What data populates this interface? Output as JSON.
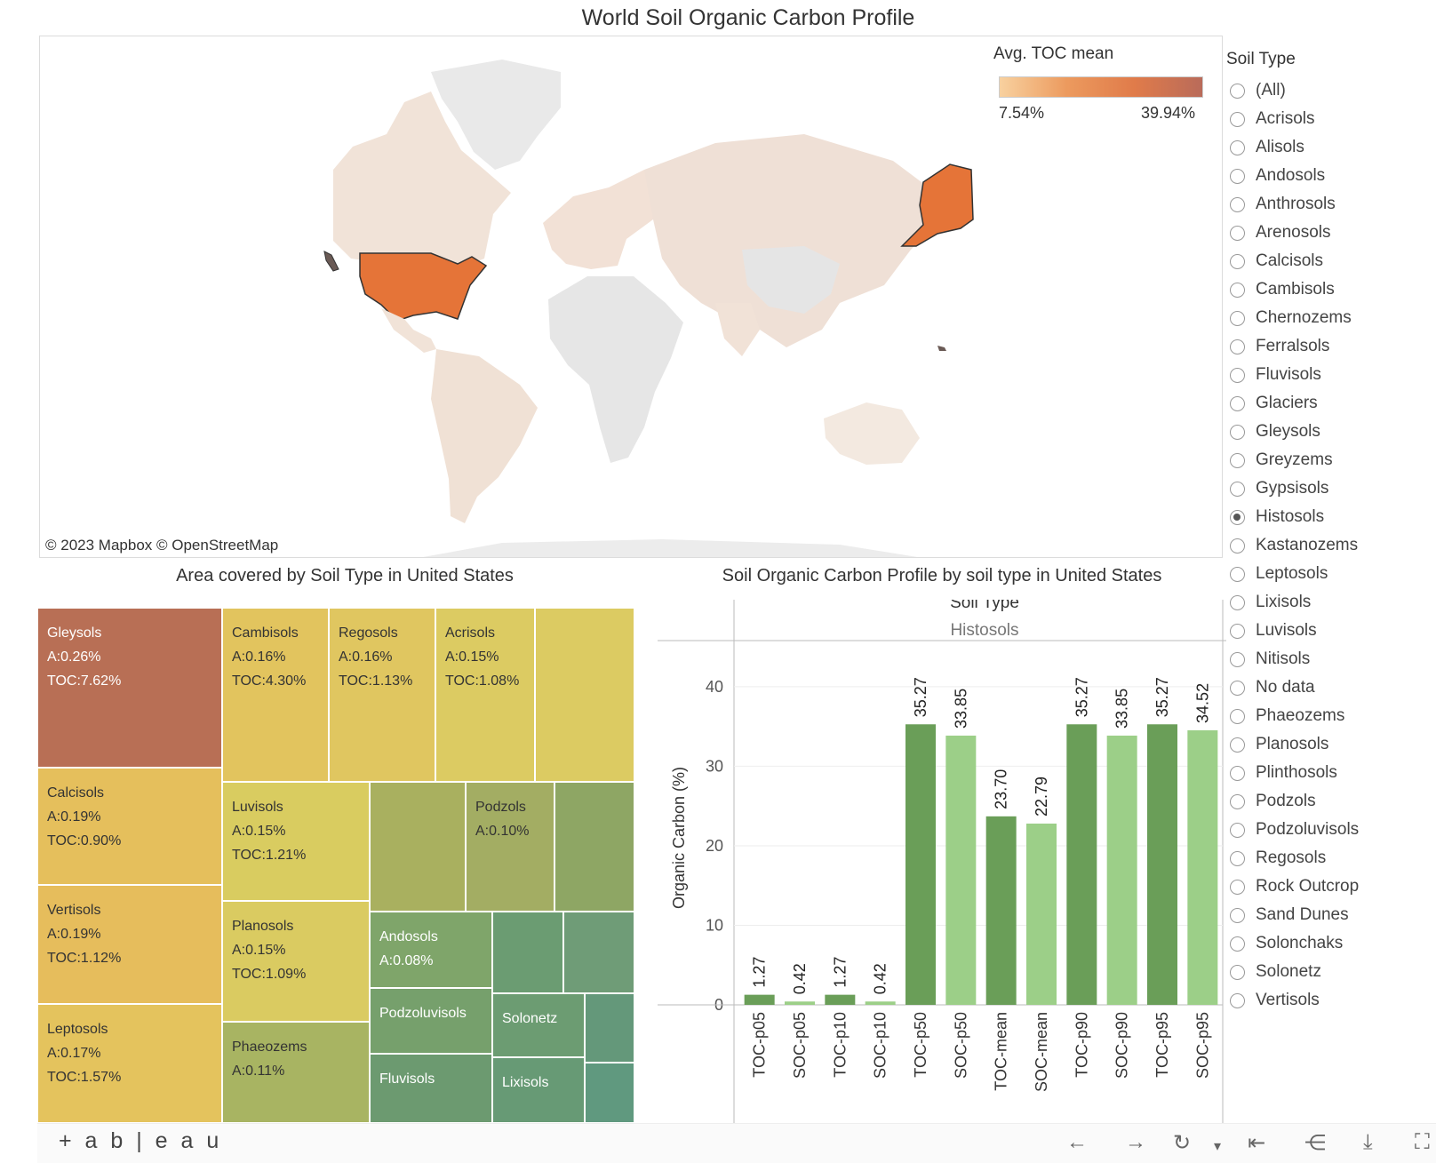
{
  "page_title": "World Soil Organic Carbon Profile",
  "map": {
    "legend_title": "Avg. TOC mean",
    "legend_min": "7.54%",
    "legend_max": "39.94%",
    "attribution": "© 2023 Mapbox  © OpenStreetMap",
    "highlight_color": "#e57438",
    "land_color": "#efe0d6",
    "nodata_color": "#e9e9e9"
  },
  "filter": {
    "title": "Soil Type",
    "selected": "Histosols",
    "options": [
      "(All)",
      "Acrisols",
      "Alisols",
      "Andosols",
      "Anthrosols",
      "Arenosols",
      "Calcisols",
      "Cambisols",
      "Chernozems",
      "Ferralsols",
      "Fluvisols",
      "Glaciers",
      "Gleysols",
      "Greyzems",
      "Gypsisols",
      "Histosols",
      "Kastanozems",
      "Leptosols",
      "Lixisols",
      "Luvisols",
      "Nitisols",
      "No data",
      "Phaeozems",
      "Planosols",
      "Plinthosols",
      "Podzols",
      "Podzoluvisols",
      "Regosols",
      "Rock Outcrop",
      "Sand Dunes",
      "Solonchaks",
      "Solonetz",
      "Vertisols"
    ]
  },
  "treemap": {
    "title": "Area covered by Soil Type in United States",
    "tiles": [
      {
        "name": "Gleysols",
        "area": "A:0.26%",
        "toc": "TOC:7.62%",
        "color": "#b86f55"
      },
      {
        "name": "Cambisols",
        "area": "A:0.16%",
        "toc": "TOC:4.30%",
        "color": "#e2c45e"
      },
      {
        "name": "Regosols",
        "area": "A:0.16%",
        "toc": "TOC:1.13%",
        "color": "#e0c660"
      },
      {
        "name": "Acrisols",
        "area": "A:0.15%",
        "toc": "TOC:1.08%",
        "color": "#dccb62"
      },
      {
        "name": "",
        "area": "",
        "toc": "",
        "color": "#dccb62"
      },
      {
        "name": "Calcisols",
        "area": "A:0.19%",
        "toc": "TOC:0.90%",
        "color": "#e5bf5c"
      },
      {
        "name": "Luvisols",
        "area": "A:0.15%",
        "toc": "TOC:1.21%",
        "color": "#d9cc60"
      },
      {
        "name": "",
        "area": "",
        "toc": "",
        "color": "#a9b05f"
      },
      {
        "name": "Podzols",
        "area": "A:0.10%",
        "toc": "",
        "color": "#a3ad63"
      },
      {
        "name": "",
        "area": "",
        "toc": "",
        "color": "#8ea664"
      },
      {
        "name": "Vertisols",
        "area": "A:0.19%",
        "toc": "TOC:1.12%",
        "color": "#e6bd5c"
      },
      {
        "name": "Planosols",
        "area": "A:0.15%",
        "toc": "TOC:1.09%",
        "color": "#dacb61"
      },
      {
        "name": "Andosols",
        "area": "A:0.08%",
        "toc": "",
        "color": "#7fa56a"
      },
      {
        "name": "",
        "area": "",
        "toc": "",
        "color": "#6b9c72"
      },
      {
        "name": "",
        "area": "",
        "toc": "",
        "color": "#6f9c77"
      },
      {
        "name": "Leptosols",
        "area": "A:0.17%",
        "toc": "TOC:1.57%",
        "color": "#e4c35d"
      },
      {
        "name": "Phaeozems",
        "area": "A:0.11%",
        "toc": "",
        "color": "#a8b462"
      },
      {
        "name": "Podzoluvisols",
        "area": "",
        "toc": "",
        "color": "#76a06c"
      },
      {
        "name": "Solonetz",
        "area": "",
        "toc": "",
        "color": "#6c9c72"
      },
      {
        "name": "",
        "area": "",
        "toc": "",
        "color": "#64987a"
      },
      {
        "name": "Fluvisols",
        "area": "",
        "toc": "",
        "color": "#6c9a70"
      },
      {
        "name": "Lixisols",
        "area": "",
        "toc": "",
        "color": "#679a75"
      },
      {
        "name": "",
        "area": "",
        "toc": "",
        "color": "#60997f"
      }
    ]
  },
  "chart_data": {
    "type": "bar",
    "title": "Soil Organic Carbon Profile by soil type in United States",
    "header_label": "Soil Type",
    "header_value": "Histosols",
    "ylabel": "Organic Carbon (%)",
    "ylim": [
      0,
      42
    ],
    "yticks": [
      0,
      10,
      20,
      30,
      40
    ],
    "categories": [
      "TOC-p05",
      "SOC-p05",
      "TOC-p10",
      "SOC-p10",
      "TOC-p50",
      "SOC-p50",
      "TOC-mean",
      "SOC-mean",
      "TOC-p90",
      "SOC-p90",
      "TOC-p95",
      "SOC-p95"
    ],
    "values": [
      1.27,
      0.42,
      1.27,
      0.42,
      35.27,
      33.85,
      23.7,
      22.79,
      35.27,
      33.85,
      35.27,
      34.52
    ],
    "labels": [
      "1.27",
      "0.42",
      "1.27",
      "0.42",
      "35.27",
      "33.85",
      "23.70",
      "22.79",
      "35.27",
      "33.85",
      "35.27",
      "34.52"
    ],
    "colors": {
      "TOC": "#6a9e58",
      "SOC": "#9ccf88"
    },
    "grid": true
  },
  "toolbar": {
    "brand": "+ a b | e a u",
    "icons": [
      "undo-icon",
      "redo-icon",
      "revert-icon",
      "dropdown-icon",
      "reset-icon",
      "share-icon",
      "download-icon",
      "fullscreen-icon"
    ]
  }
}
